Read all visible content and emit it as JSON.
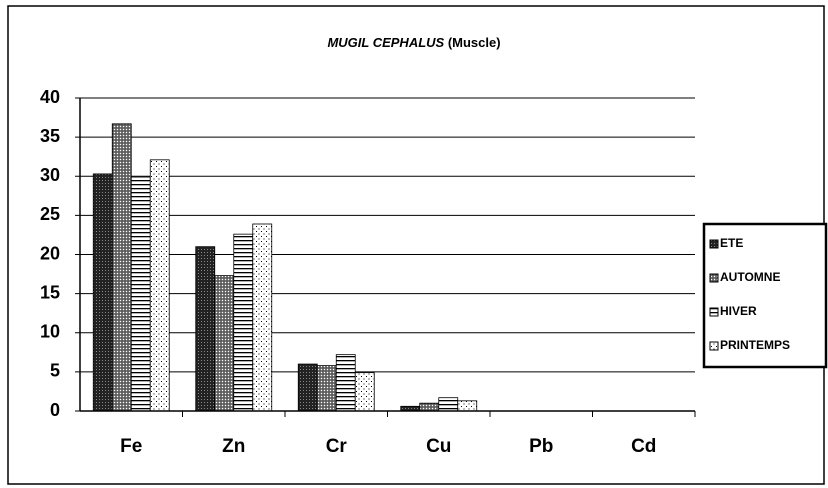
{
  "chart_data": {
    "type": "bar",
    "title": {
      "species": "MUGIL CEPHALUS",
      "part": "(Muscle)"
    },
    "categories": [
      "Fe",
      "Zn",
      "Cr",
      "Cu",
      "Pb",
      "Cd"
    ],
    "series": [
      {
        "name": "ETE",
        "values": [
          30.3,
          21.0,
          6.0,
          0.6,
          0,
          0
        ]
      },
      {
        "name": "AUTOMNE",
        "values": [
          36.7,
          17.3,
          5.8,
          1.0,
          0,
          0
        ]
      },
      {
        "name": "HIVER",
        "values": [
          29.9,
          22.6,
          7.2,
          1.7,
          0,
          0
        ]
      },
      {
        "name": "PRINTEMPS",
        "values": [
          32.1,
          23.9,
          4.9,
          1.3,
          0,
          0
        ]
      }
    ],
    "ylim": [
      0,
      40
    ],
    "yticks": [
      0,
      5,
      10,
      15,
      20,
      25,
      30,
      35,
      40
    ],
    "grid": true,
    "legend": "right"
  }
}
